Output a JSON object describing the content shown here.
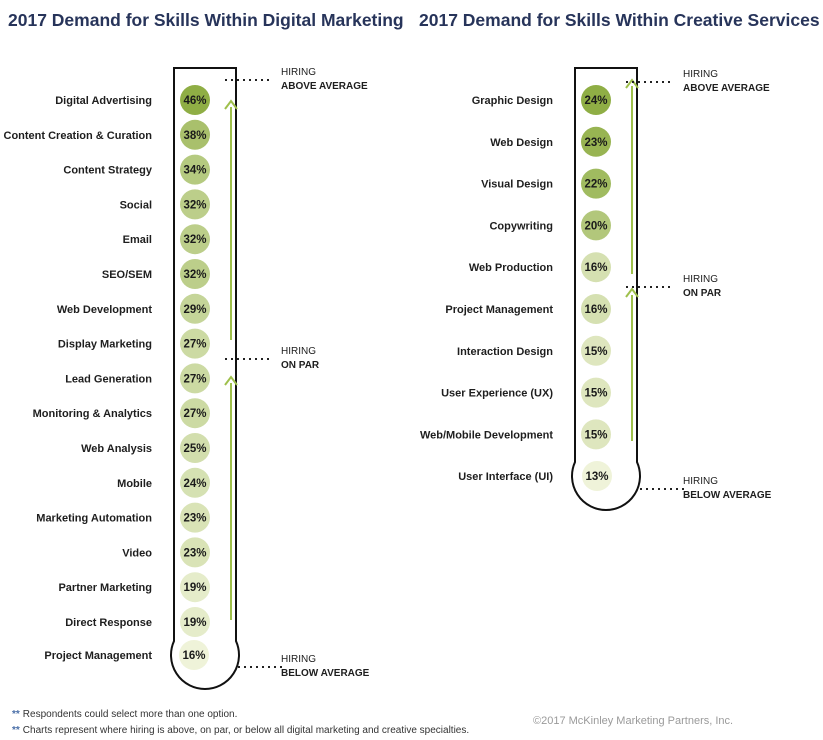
{
  "colors": {
    "title": "#27345a",
    "arrow": "#9fc04c",
    "level_high": "#8fae45",
    "level_low": "#eef2d8"
  },
  "chart_data": [
    {
      "type": "bar",
      "title": "2017 Demand for Skills Within Digital Marketing",
      "categories": [
        "Digital Advertising",
        "Content Creation & Curation",
        "Content Strategy",
        "Social",
        "Email",
        "SEO/SEM",
        "Web Development",
        "Display Marketing",
        "Lead Generation",
        "Monitoring & Analytics",
        "Web Analysis",
        "Mobile",
        "Marketing Automation",
        "Video",
        "Partner Marketing",
        "Direct Response",
        "Project Management"
      ],
      "values": [
        46,
        38,
        34,
        32,
        32,
        32,
        29,
        27,
        27,
        27,
        25,
        24,
        23,
        23,
        19,
        19,
        16
      ],
      "value_labels": [
        "46%",
        "38%",
        "34%",
        "32%",
        "32%",
        "32%",
        "29%",
        "27%",
        "27%",
        "27%",
        "25%",
        "24%",
        "23%",
        "23%",
        "19%",
        "19%",
        "16%"
      ],
      "hiring_levels": [
        {
          "line1": "HIRING",
          "line2": "ABOVE AVERAGE"
        },
        {
          "line1": "HIRING",
          "line2": "ON PAR"
        },
        {
          "line1": "HIRING",
          "line2": "BELOW AVERAGE"
        }
      ]
    },
    {
      "type": "bar",
      "title": "2017 Demand for Skills Within Creative Services",
      "categories": [
        "Graphic Design",
        "Web Design",
        "Visual Design",
        "Copywriting",
        "Web Production",
        "Project Management",
        "Interaction Design",
        "User Experience (UX)",
        "Web/Mobile Development",
        "User Interface (UI)"
      ],
      "values": [
        24,
        23,
        22,
        20,
        16,
        16,
        15,
        15,
        15,
        13
      ],
      "value_labels": [
        "24%",
        "23%",
        "22%",
        "20%",
        "16%",
        "16%",
        "15%",
        "15%",
        "15%",
        "13%"
      ],
      "hiring_levels": [
        {
          "line1": "HIRING",
          "line2": "ABOVE AVERAGE"
        },
        {
          "line1": "HIRING",
          "line2": "ON PAR"
        },
        {
          "line1": "HIRING",
          "line2": "BELOW AVERAGE"
        }
      ]
    }
  ],
  "footnotes": [
    {
      "mark": "**",
      "text": "Respondents could select more than one option."
    },
    {
      "mark": "**",
      "text": "Charts represent where hiring is above, on par, or below all digital marketing and creative specialties."
    }
  ],
  "copyright": "©2017 McKinley Marketing Partners, Inc."
}
